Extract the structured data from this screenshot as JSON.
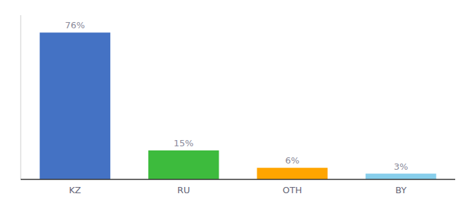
{
  "chart_data": {
    "type": "bar",
    "categories": [
      "KZ",
      "RU",
      "OTH",
      "BY"
    ],
    "values": [
      76,
      15,
      6,
      3
    ],
    "value_labels": [
      "76%",
      "15%",
      "6%",
      "3%"
    ],
    "data_labels": true,
    "colors": [
      "#4472C4",
      "#3DBB3D",
      "#FFA500",
      "#87CEEB"
    ],
    "ylim": [
      0,
      85
    ],
    "tick_labels": "x",
    "grid": false
  }
}
